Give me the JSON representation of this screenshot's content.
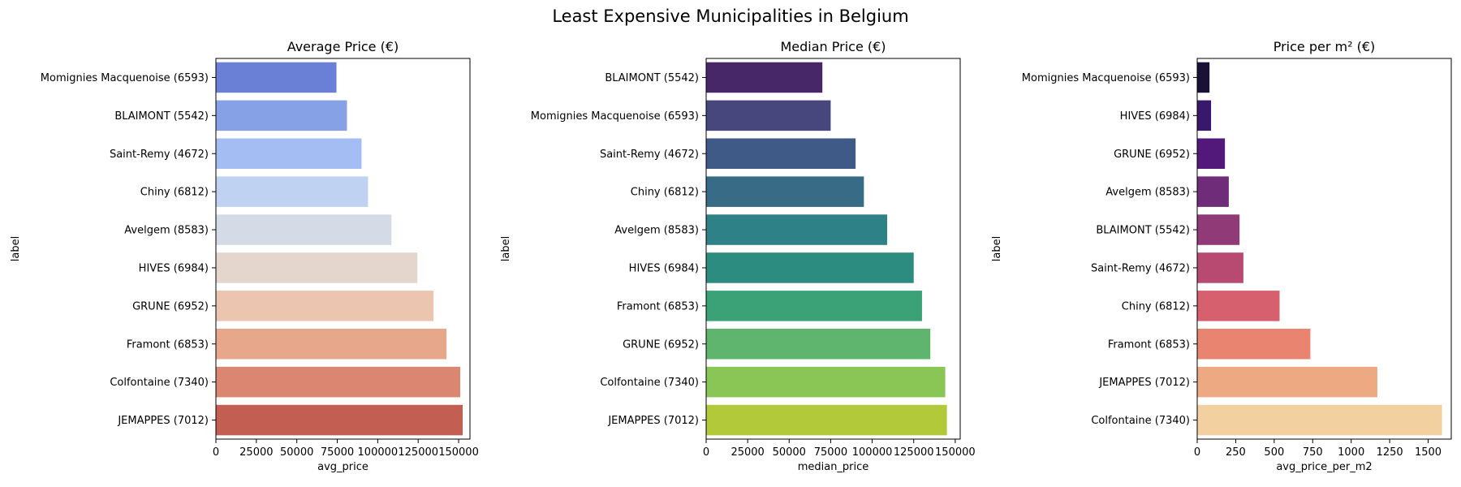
{
  "figure": {
    "title": "Least Expensive Municipalities in Belgium"
  },
  "chart_data": [
    {
      "type": "bar",
      "orientation": "horizontal",
      "title": "Average Price (€)",
      "xlabel": "avg_price",
      "ylabel": "label",
      "xlim": [
        0,
        157000
      ],
      "xticks": [
        0,
        25000,
        50000,
        75000,
        100000,
        125000,
        150000
      ],
      "categories": [
        "Momignies Macquenoise (6593)",
        "BLAIMONT (5542)",
        "Saint-Remy (4672)",
        "Chiny (6812)",
        "Avelgem (8583)",
        "HIVES (6984)",
        "GRUNE (6952)",
        "Framont (6853)",
        "Colfontaine (7340)",
        "JEMAPPES (7012)"
      ],
      "values": [
        74500,
        81000,
        90000,
        94000,
        108500,
        124500,
        134500,
        142500,
        151000,
        152500
      ],
      "colors": [
        "#6a80d6",
        "#86a1e6",
        "#a4bdf3",
        "#bfd2f2",
        "#d4dbe6",
        "#e4d6cd",
        "#ecc5b1",
        "#e6a78b",
        "#da8670",
        "#c35e53"
      ],
      "grid": false,
      "legend": "none"
    },
    {
      "type": "bar",
      "orientation": "horizontal",
      "title": "Median Price (€)",
      "xlabel": "median_price",
      "ylabel": "label",
      "xlim": [
        0,
        153000
      ],
      "xticks": [
        0,
        25000,
        50000,
        75000,
        100000,
        125000,
        150000
      ],
      "categories": [
        "BLAIMONT (5542)",
        "Momignies Macquenoise (6593)",
        "Saint-Remy (4672)",
        "Chiny (6812)",
        "Avelgem (8583)",
        "HIVES (6984)",
        "Framont (6853)",
        "GRUNE (6952)",
        "Colfontaine (7340)",
        "JEMAPPES (7012)"
      ],
      "values": [
        70000,
        75000,
        90000,
        95000,
        109000,
        125000,
        130000,
        135000,
        144000,
        145000
      ],
      "colors": [
        "#482769",
        "#47477d",
        "#3f5a86",
        "#376b86",
        "#2d8187",
        "#2c8c80",
        "#3aa276",
        "#5fb56d",
        "#89c655",
        "#b2c93a"
      ],
      "grid": false,
      "legend": "none"
    },
    {
      "type": "bar",
      "orientation": "horizontal",
      "title": "Price per m² (€)",
      "xlabel": "avg_price_per_m2",
      "ylabel": "label",
      "xlim": [
        0,
        1650
      ],
      "xticks": [
        0,
        250,
        500,
        750,
        1000,
        1250,
        1500
      ],
      "categories": [
        "Momignies Macquenoise (6593)",
        "HIVES (6984)",
        "GRUNE (6952)",
        "Avelgem (8583)",
        "BLAIMONT (5542)",
        "Saint-Remy (4672)",
        "Chiny (6812)",
        "Framont (6853)",
        "JEMAPPES (7012)",
        "Colfontaine (7340)"
      ],
      "values": [
        80,
        90,
        180,
        205,
        275,
        300,
        535,
        735,
        1170,
        1590
      ],
      "colors": [
        "#1b1136",
        "#38186a",
        "#52197b",
        "#6f2d79",
        "#913a78",
        "#b84a72",
        "#d7606e",
        "#e88470",
        "#eda982",
        "#f2d09f"
      ],
      "grid": false,
      "legend": "none"
    }
  ]
}
